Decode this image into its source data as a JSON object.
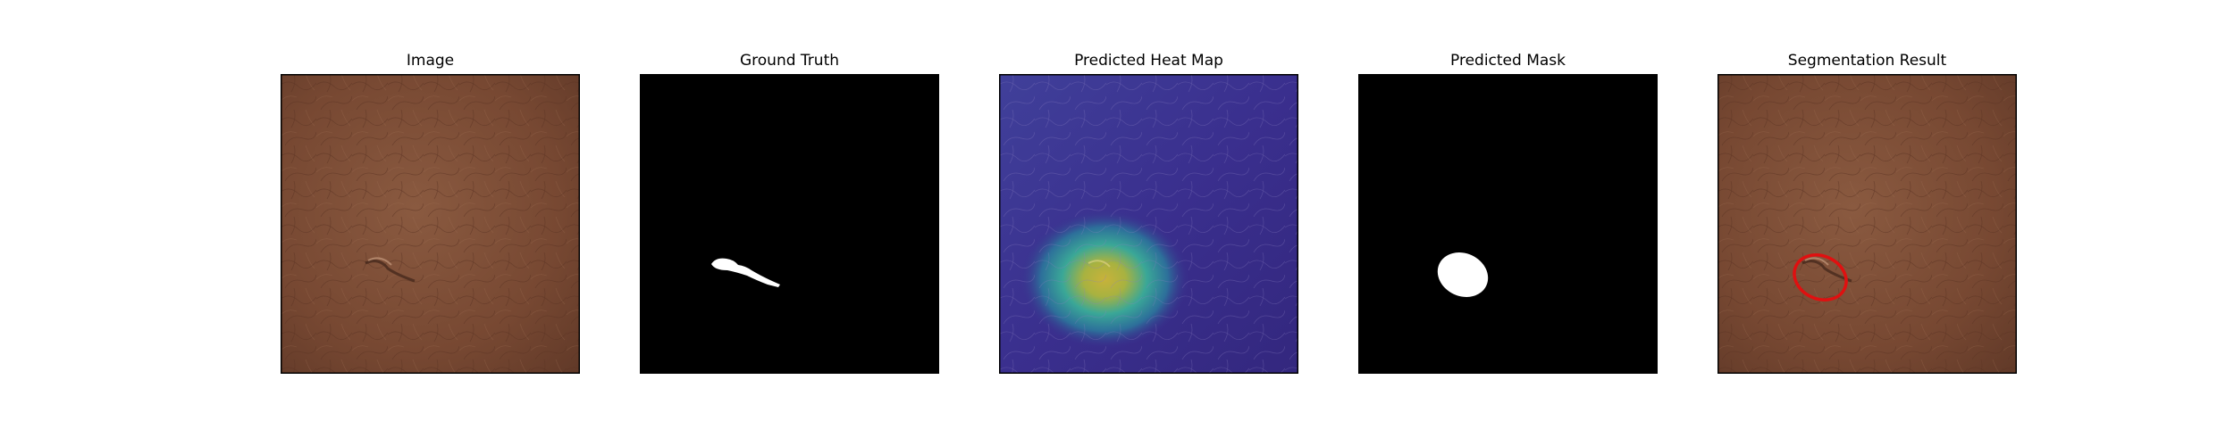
{
  "figure": {
    "panels": [
      {
        "title": "Image"
      },
      {
        "title": "Ground Truth"
      },
      {
        "title": "Predicted Heat Map"
      },
      {
        "title": "Predicted Mask"
      },
      {
        "title": "Segmentation Result"
      }
    ]
  },
  "colors": {
    "leather_base": "#7a4a33",
    "leather_light": "#8c5a40",
    "leather_dark": "#5e3726",
    "mask_background": "#000000",
    "mask_foreground": "#ffffff",
    "heatmap_low": "#3b2f8c",
    "heatmap_mid": "#2fa59b",
    "heatmap_high": "#c9b435",
    "contour": "#e01010"
  }
}
